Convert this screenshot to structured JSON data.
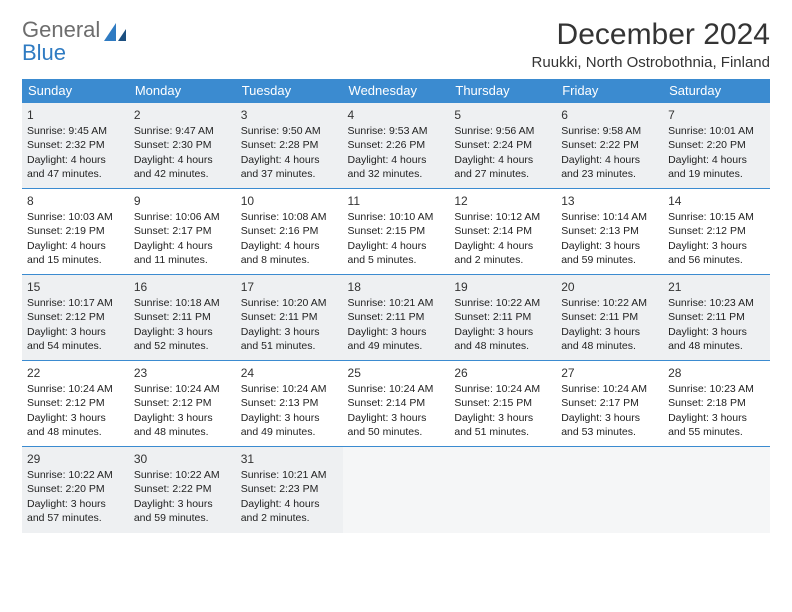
{
  "logo": {
    "word1": "General",
    "word2": "Blue"
  },
  "header": {
    "title": "December 2024",
    "location": "Ruukki, North Ostrobothnia, Finland"
  },
  "styling": {
    "header_bg": "#3b8bd0",
    "header_fg": "#ffffff",
    "gray_bg": "#eef0f2",
    "empty_bg": "#f5f6f7",
    "row_border": "#3b8bd0",
    "body_font_size": 10.5,
    "daynum_font_size": 12,
    "title_font_size": 30,
    "location_font_size": 15
  },
  "weekdays": [
    "Sunday",
    "Monday",
    "Tuesday",
    "Wednesday",
    "Thursday",
    "Friday",
    "Saturday"
  ],
  "days": [
    {
      "n": "1",
      "sr": "9:45 AM",
      "ss": "2:32 PM",
      "dl": "4 hours and 47 minutes.",
      "g": true
    },
    {
      "n": "2",
      "sr": "9:47 AM",
      "ss": "2:30 PM",
      "dl": "4 hours and 42 minutes.",
      "g": true
    },
    {
      "n": "3",
      "sr": "9:50 AM",
      "ss": "2:28 PM",
      "dl": "4 hours and 37 minutes.",
      "g": true
    },
    {
      "n": "4",
      "sr": "9:53 AM",
      "ss": "2:26 PM",
      "dl": "4 hours and 32 minutes.",
      "g": true
    },
    {
      "n": "5",
      "sr": "9:56 AM",
      "ss": "2:24 PM",
      "dl": "4 hours and 27 minutes.",
      "g": true
    },
    {
      "n": "6",
      "sr": "9:58 AM",
      "ss": "2:22 PM",
      "dl": "4 hours and 23 minutes.",
      "g": true
    },
    {
      "n": "7",
      "sr": "10:01 AM",
      "ss": "2:20 PM",
      "dl": "4 hours and 19 minutes.",
      "g": true
    },
    {
      "n": "8",
      "sr": "10:03 AM",
      "ss": "2:19 PM",
      "dl": "4 hours and 15 minutes.",
      "g": false
    },
    {
      "n": "9",
      "sr": "10:06 AM",
      "ss": "2:17 PM",
      "dl": "4 hours and 11 minutes.",
      "g": false
    },
    {
      "n": "10",
      "sr": "10:08 AM",
      "ss": "2:16 PM",
      "dl": "4 hours and 8 minutes.",
      "g": false
    },
    {
      "n": "11",
      "sr": "10:10 AM",
      "ss": "2:15 PM",
      "dl": "4 hours and 5 minutes.",
      "g": false
    },
    {
      "n": "12",
      "sr": "10:12 AM",
      "ss": "2:14 PM",
      "dl": "4 hours and 2 minutes.",
      "g": false
    },
    {
      "n": "13",
      "sr": "10:14 AM",
      "ss": "2:13 PM",
      "dl": "3 hours and 59 minutes.",
      "g": false
    },
    {
      "n": "14",
      "sr": "10:15 AM",
      "ss": "2:12 PM",
      "dl": "3 hours and 56 minutes.",
      "g": false
    },
    {
      "n": "15",
      "sr": "10:17 AM",
      "ss": "2:12 PM",
      "dl": "3 hours and 54 minutes.",
      "g": true
    },
    {
      "n": "16",
      "sr": "10:18 AM",
      "ss": "2:11 PM",
      "dl": "3 hours and 52 minutes.",
      "g": true
    },
    {
      "n": "17",
      "sr": "10:20 AM",
      "ss": "2:11 PM",
      "dl": "3 hours and 51 minutes.",
      "g": true
    },
    {
      "n": "18",
      "sr": "10:21 AM",
      "ss": "2:11 PM",
      "dl": "3 hours and 49 minutes.",
      "g": true
    },
    {
      "n": "19",
      "sr": "10:22 AM",
      "ss": "2:11 PM",
      "dl": "3 hours and 48 minutes.",
      "g": true
    },
    {
      "n": "20",
      "sr": "10:22 AM",
      "ss": "2:11 PM",
      "dl": "3 hours and 48 minutes.",
      "g": true
    },
    {
      "n": "21",
      "sr": "10:23 AM",
      "ss": "2:11 PM",
      "dl": "3 hours and 48 minutes.",
      "g": true
    },
    {
      "n": "22",
      "sr": "10:24 AM",
      "ss": "2:12 PM",
      "dl": "3 hours and 48 minutes.",
      "g": false
    },
    {
      "n": "23",
      "sr": "10:24 AM",
      "ss": "2:12 PM",
      "dl": "3 hours and 48 minutes.",
      "g": false
    },
    {
      "n": "24",
      "sr": "10:24 AM",
      "ss": "2:13 PM",
      "dl": "3 hours and 49 minutes.",
      "g": false
    },
    {
      "n": "25",
      "sr": "10:24 AM",
      "ss": "2:14 PM",
      "dl": "3 hours and 50 minutes.",
      "g": false
    },
    {
      "n": "26",
      "sr": "10:24 AM",
      "ss": "2:15 PM",
      "dl": "3 hours and 51 minutes.",
      "g": false
    },
    {
      "n": "27",
      "sr": "10:24 AM",
      "ss": "2:17 PM",
      "dl": "3 hours and 53 minutes.",
      "g": false
    },
    {
      "n": "28",
      "sr": "10:23 AM",
      "ss": "2:18 PM",
      "dl": "3 hours and 55 minutes.",
      "g": false
    },
    {
      "n": "29",
      "sr": "10:22 AM",
      "ss": "2:20 PM",
      "dl": "3 hours and 57 minutes.",
      "g": true
    },
    {
      "n": "30",
      "sr": "10:22 AM",
      "ss": "2:22 PM",
      "dl": "3 hours and 59 minutes.",
      "g": true
    },
    {
      "n": "31",
      "sr": "10:21 AM",
      "ss": "2:23 PM",
      "dl": "4 hours and 2 minutes.",
      "g": true
    }
  ],
  "labels": {
    "sunrise": "Sunrise:",
    "sunset": "Sunset:",
    "daylight": "Daylight:"
  }
}
